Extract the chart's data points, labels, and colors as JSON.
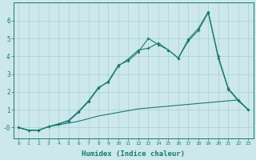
{
  "xlabel": "Humidex (Indice chaleur)",
  "bg_color": "#cce8ed",
  "grid_color": "#aacdd4",
  "line_color": "#1a7a6e",
  "xlim": [
    -0.5,
    23.5
  ],
  "ylim": [
    -0.6,
    7.0
  ],
  "yticks": [
    0,
    1,
    2,
    3,
    4,
    5,
    6
  ],
  "ytick_labels": [
    "-0",
    "1",
    "2",
    "3",
    "4",
    "5",
    "6"
  ],
  "xticks": [
    0,
    1,
    2,
    3,
    4,
    5,
    6,
    7,
    8,
    9,
    10,
    11,
    12,
    13,
    14,
    15,
    16,
    17,
    18,
    19,
    20,
    21,
    22,
    23
  ],
  "line1_x": [
    0,
    1,
    2,
    3,
    4,
    5,
    6,
    7,
    8,
    9,
    10,
    11,
    12,
    13,
    14,
    15,
    16,
    17,
    18,
    19,
    20,
    21,
    22,
    23
  ],
  "line1_y": [
    0.0,
    -0.15,
    -0.15,
    0.05,
    0.15,
    0.25,
    0.35,
    0.5,
    0.65,
    0.75,
    0.85,
    0.95,
    1.05,
    1.1,
    1.15,
    1.2,
    1.25,
    1.3,
    1.35,
    1.4,
    1.45,
    1.5,
    1.55,
    1.0
  ],
  "line2_x": [
    0,
    1,
    2,
    3,
    4,
    5,
    6,
    7,
    8,
    9,
    10,
    11,
    12,
    13,
    14,
    15,
    16,
    17,
    18,
    19,
    20,
    21,
    22,
    23
  ],
  "line2_y": [
    0.0,
    -0.15,
    -0.15,
    0.05,
    0.2,
    0.35,
    0.85,
    1.45,
    2.2,
    2.6,
    3.5,
    3.75,
    4.25,
    5.0,
    4.65,
    4.35,
    3.9,
    4.95,
    5.55,
    6.5,
    4.0,
    2.2,
    1.55,
    1.0
  ],
  "line3_x": [
    0,
    1,
    2,
    3,
    4,
    5,
    6,
    7,
    8,
    9,
    10,
    11,
    12,
    13,
    14,
    15,
    16,
    17,
    18,
    19,
    20,
    21,
    22,
    23
  ],
  "line3_y": [
    0.0,
    -0.15,
    -0.15,
    0.05,
    0.2,
    0.4,
    0.9,
    1.5,
    2.25,
    2.55,
    3.45,
    3.85,
    4.35,
    4.45,
    4.75,
    4.35,
    3.9,
    4.85,
    5.45,
    6.45,
    3.9,
    2.15,
    1.5,
    1.0
  ]
}
